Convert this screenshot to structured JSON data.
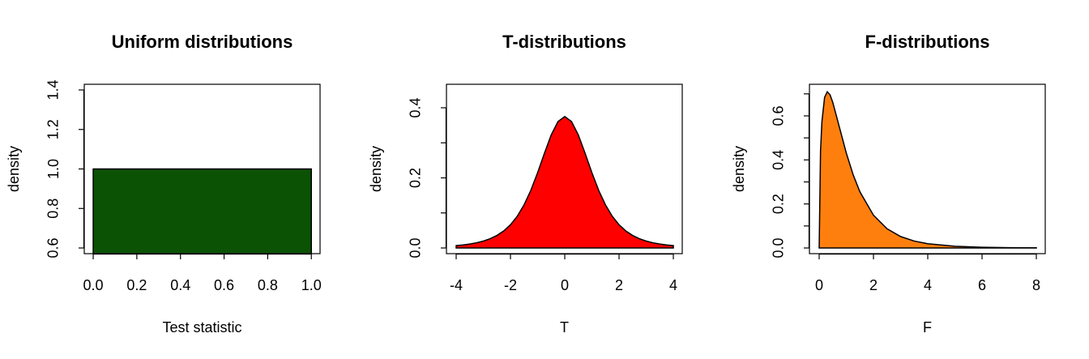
{
  "chart_data": [
    {
      "type": "area",
      "title": "Uniform distributions",
      "xlabel": "Test statistic",
      "ylabel": "density",
      "x": [
        0,
        1
      ],
      "values": [
        1,
        1
      ],
      "color": "#0b5205",
      "xlim": [
        -0.041,
        1.04
      ],
      "ylim": [
        0.5713,
        1.4287
      ],
      "xticks": [
        {
          "value": 0,
          "label": "0.0"
        },
        0.2,
        0.4,
        0.6,
        0.8,
        {
          "value": 1,
          "label": "1.0"
        }
      ],
      "yticks": [
        0.6,
        0.8,
        {
          "value": 1,
          "label": "1.0"
        },
        1.2,
        1.4
      ]
    },
    {
      "type": "area",
      "title": "T-distributions",
      "xlabel": "T",
      "ylabel": "density",
      "x": [
        -4,
        -3.75,
        -3.5,
        -3.25,
        -3,
        -2.75,
        -2.5,
        -2.25,
        -2,
        -1.75,
        -1.5,
        -1.25,
        -1,
        -0.75,
        -0.5,
        -0.25,
        0,
        0.25,
        0.5,
        0.75,
        1,
        1.25,
        1.5,
        1.75,
        2,
        2.25,
        2.5,
        2.75,
        3,
        3.25,
        3.5,
        3.75,
        4
      ],
      "values": [
        0.0067,
        0.0087,
        0.0113,
        0.0148,
        0.0197,
        0.0264,
        0.0357,
        0.0485,
        0.0663,
        0.0905,
        0.1229,
        0.1644,
        0.2147,
        0.2699,
        0.3223,
        0.3607,
        0.375,
        0.3607,
        0.3223,
        0.2699,
        0.2147,
        0.1644,
        0.1229,
        0.0905,
        0.0663,
        0.0485,
        0.0357,
        0.0264,
        0.0197,
        0.0148,
        0.0113,
        0.0087,
        0.0067
      ],
      "color": "#ff0000",
      "xlim": [
        -4.358,
        4.328
      ],
      "ylim": [
        -0.0162,
        0.467
      ],
      "xticks": [
        -4,
        -2,
        0,
        2,
        4
      ],
      "yticks": [
        {
          "value": 0,
          "label": "0.0"
        },
        0.2,
        0.4
      ],
      "yminor": [
        0.1,
        0.3
      ]
    },
    {
      "type": "area",
      "title": "F-distributions",
      "xlabel": "F",
      "ylabel": "density",
      "x": [
        0,
        0.05,
        0.1,
        0.2,
        0.3,
        0.4,
        0.5,
        0.75,
        1,
        1.25,
        1.5,
        2,
        2.5,
        3,
        3.5,
        4,
        5,
        6,
        7,
        8
      ],
      "values": [
        0,
        0.4411,
        0.5727,
        0.6843,
        0.7097,
        0.6957,
        0.6617,
        0.5464,
        0.4308,
        0.3331,
        0.2552,
        0.1487,
        0.0873,
        0.0519,
        0.0314,
        0.0193,
        0.0077,
        0.0033,
        0.0015,
        0.0007
      ],
      "color": "#ff7f0e",
      "xlim": [
        -0.358,
        8.328
      ],
      "ylim": [
        -0.0258,
        0.7435
      ],
      "xticks": [
        0,
        2,
        4,
        6,
        8
      ],
      "yticks": [
        {
          "value": 0,
          "label": "0.0"
        },
        0.2,
        0.4,
        0.6
      ],
      "yminor": [
        0.1,
        0.3,
        0.5,
        0.7
      ]
    }
  ]
}
